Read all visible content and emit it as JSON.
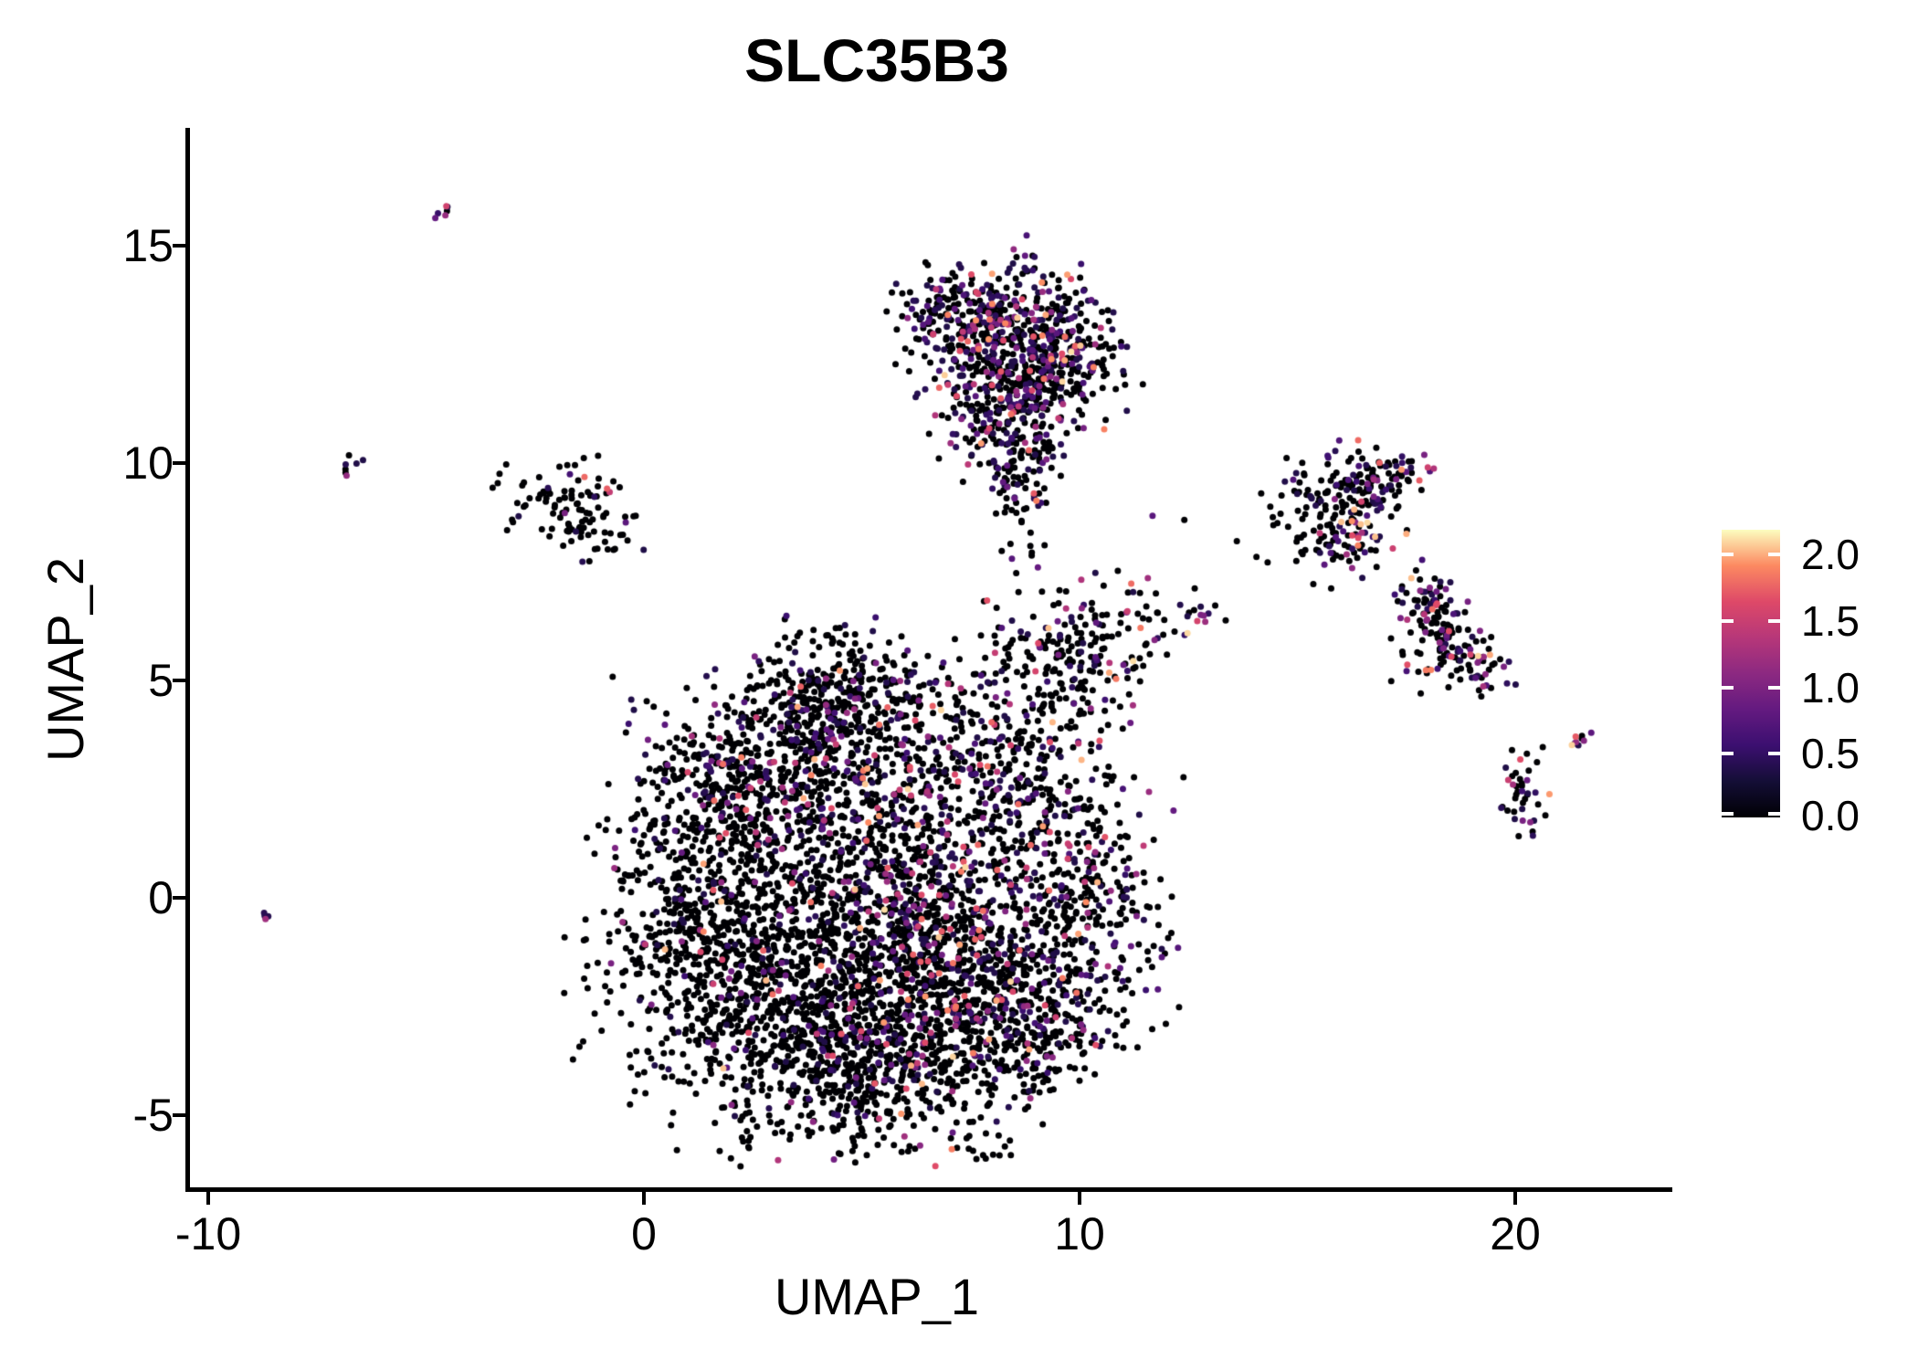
{
  "chart_data": {
    "type": "scatter",
    "title": "SLC35B3",
    "xlabel": "UMAP_1",
    "ylabel": "UMAP_2",
    "xlim": [
      -10.5,
      23.6
    ],
    "ylim": [
      -6.7,
      17.7
    ],
    "grid": false,
    "x_ticks": [
      -10,
      0,
      10,
      20
    ],
    "x_tick_labels": [
      "-10",
      "0",
      "10",
      "20"
    ],
    "y_ticks": [
      15,
      10,
      5,
      0,
      -5
    ],
    "y_tick_labels": [
      "15",
      "10",
      "5",
      "0",
      "-5"
    ],
    "legend": {
      "position": "right",
      "type": "colorbar",
      "label_values": [
        "2.0",
        "1.5",
        "1.0",
        "0.5",
        "0.0"
      ],
      "vmin": 0,
      "vmax": 2.17
    },
    "palette": {
      "name": "magma",
      "stops": [
        "#000004",
        "#140E36",
        "#3B0F70",
        "#641A80",
        "#8C2981",
        "#B73779",
        "#DE4968",
        "#FC8961",
        "#FCFDBF"
      ]
    },
    "point_radius_px": 3.5,
    "seed": 20240917,
    "expression": {
      "pos_min": 0.35,
      "pos_span": 1.75,
      "pos_gamma": 3
    },
    "clusters": [
      {
        "t": "g",
        "n": 650,
        "cx": 1.6,
        "cy": -0.9,
        "rx": 1.5,
        "ry": 1.9,
        "fp": 0.1
      },
      {
        "t": "g",
        "n": 950,
        "cx": 4.0,
        "cy": -1.4,
        "rx": 1.9,
        "ry": 2.0,
        "fp": 0.12
      },
      {
        "t": "g",
        "n": 550,
        "cx": 2.7,
        "cy": 2.8,
        "rx": 1.5,
        "ry": 1.1,
        "fp": 0.22
      },
      {
        "t": "g",
        "n": 380,
        "cx": 4.4,
        "cy": 4.5,
        "rx": 1.3,
        "ry": 0.9,
        "fp": 0.18
      },
      {
        "t": "g",
        "n": 650,
        "cx": 6.3,
        "cy": 0.6,
        "rx": 1.2,
        "ry": 2.2,
        "fp": 0.3
      },
      {
        "t": "g",
        "n": 600,
        "cx": 5.2,
        "cy": -3.8,
        "rx": 1.9,
        "ry": 1.1,
        "fp": 0.18
      },
      {
        "t": "g",
        "n": 380,
        "cx": 7.3,
        "cy": -1.9,
        "rx": 1.2,
        "ry": 1.2,
        "fp": 0.22
      },
      {
        "t": "g",
        "n": 260,
        "cx": 8.5,
        "cy": 3.3,
        "rx": 1.0,
        "ry": 1.3,
        "fp": 0.25
      },
      {
        "t": "g",
        "n": 420,
        "cx": 9.9,
        "cy": -0.1,
        "rx": 1.1,
        "ry": 1.5,
        "fp": 0.3
      },
      {
        "t": "g",
        "n": 180,
        "cx": 9.0,
        "cy": -2.7,
        "rx": 0.9,
        "ry": 0.8,
        "fp": 0.2
      },
      {
        "t": "g",
        "n": 150,
        "cx": 9.8,
        "cy": 5.5,
        "rx": 0.9,
        "ry": 0.9,
        "fp": 0.3
      },
      {
        "t": "g",
        "n": 45,
        "cx": 10.9,
        "cy": 6.4,
        "rx": 0.7,
        "ry": 0.7,
        "fp": 0.35
      },
      {
        "t": "g",
        "n": 170,
        "cx": 7.3,
        "cy": 13.4,
        "rx": 0.8,
        "ry": 0.55,
        "fp": 0.45
      },
      {
        "t": "g",
        "n": 260,
        "cx": 8.8,
        "cy": 13.1,
        "rx": 1.0,
        "ry": 0.8,
        "fp": 0.4
      },
      {
        "t": "g",
        "n": 220,
        "cx": 9.4,
        "cy": 12.1,
        "rx": 0.9,
        "ry": 0.8,
        "fp": 0.42
      },
      {
        "t": "g",
        "n": 170,
        "cx": 8.1,
        "cy": 11.7,
        "rx": 0.9,
        "ry": 0.75,
        "fp": 0.4
      },
      {
        "t": "g",
        "n": 110,
        "cx": 8.6,
        "cy": 10.6,
        "rx": 0.6,
        "ry": 0.7,
        "fp": 0.35
      },
      {
        "t": "g",
        "n": 55,
        "cx": 8.7,
        "cy": 9.4,
        "rx": 0.35,
        "ry": 0.8,
        "fp": 0.3
      },
      {
        "t": "g",
        "n": 14,
        "cx": 8.85,
        "cy": 14.55,
        "rx": 0.2,
        "ry": 0.35,
        "fp": 0.5
      },
      {
        "t": "g",
        "n": 70,
        "cx": -2.0,
        "cy": 9.2,
        "rx": 0.7,
        "ry": 0.45,
        "fp": 0.12
      },
      {
        "t": "g",
        "n": 40,
        "cx": -1.1,
        "cy": 8.6,
        "rx": 0.55,
        "ry": 0.5,
        "fp": 0.2
      },
      {
        "t": "s",
        "n": 7,
        "x1": -6.95,
        "y1": 9.8,
        "x2": -6.6,
        "y2": 10.05,
        "w": 0.08,
        "fp": 0.7
      },
      {
        "t": "s",
        "n": 6,
        "x1": -4.75,
        "y1": 15.55,
        "x2": -4.45,
        "y2": 15.9,
        "w": 0.08,
        "fp": 0.8
      },
      {
        "t": "s",
        "n": 4,
        "x1": -8.8,
        "y1": -0.5,
        "x2": -8.6,
        "y2": -0.35,
        "w": 0.06,
        "fp": 0.7
      },
      {
        "t": "g",
        "n": 120,
        "cx": 16.0,
        "cy": 9.3,
        "rx": 0.75,
        "ry": 0.6,
        "fp": 0.3
      },
      {
        "t": "s",
        "n": 45,
        "x1": 16.3,
        "y1": 9.2,
        "x2": 17.9,
        "y2": 10.1,
        "w": 0.25,
        "fp": 0.3
      },
      {
        "t": "g",
        "n": 70,
        "cx": 16.2,
        "cy": 8.3,
        "rx": 0.55,
        "ry": 0.6,
        "fp": 0.35
      },
      {
        "t": "g",
        "n": 18,
        "cx": 15.3,
        "cy": 7.9,
        "rx": 0.7,
        "ry": 0.5,
        "fp": 0.25
      },
      {
        "t": "s",
        "n": 60,
        "x1": 17.7,
        "y1": 7.2,
        "x2": 18.5,
        "y2": 6.3,
        "w": 0.3,
        "fp": 0.35
      },
      {
        "t": "s",
        "n": 90,
        "x1": 18.2,
        "y1": 6.2,
        "x2": 19.3,
        "y2": 5.0,
        "w": 0.35,
        "fp": 0.35
      },
      {
        "t": "g",
        "n": 25,
        "cx": 17.9,
        "cy": 5.6,
        "rx": 0.4,
        "ry": 0.5,
        "fp": 0.3
      },
      {
        "t": "g",
        "n": 40,
        "cx": 20.2,
        "cy": 2.4,
        "rx": 0.35,
        "ry": 0.65,
        "fp": 0.35
      },
      {
        "t": "s",
        "n": 9,
        "x1": 21.3,
        "y1": 3.45,
        "x2": 21.7,
        "y2": 3.7,
        "w": 0.1,
        "fp": 0.8
      },
      {
        "t": "g",
        "n": 9,
        "cx": 12.7,
        "cy": 6.55,
        "rx": 0.3,
        "ry": 0.15,
        "fp": 0.7
      },
      {
        "t": "g",
        "n": 12,
        "cx": 11.6,
        "cy": 6.1,
        "rx": 1.1,
        "ry": 0.8,
        "fp": 0.3
      },
      {
        "t": "g",
        "n": 8,
        "cx": 13.5,
        "cy": 8.6,
        "rx": 1.3,
        "ry": 0.6,
        "fp": 0.3
      },
      {
        "t": "g",
        "n": 10,
        "cx": 8.5,
        "cy": 7.5,
        "rx": 0.7,
        "ry": 0.9,
        "fp": 0.25
      }
    ]
  }
}
